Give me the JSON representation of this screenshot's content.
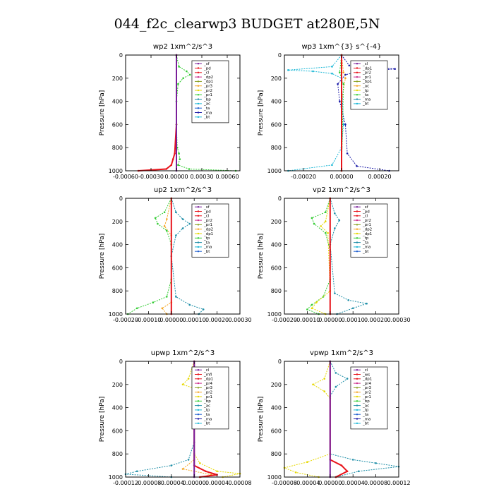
{
  "figure": {
    "title": "044_f2c_clearwp3  BUDGET at280E,5N"
  },
  "colors": {
    "purple": "#7a1f9a",
    "red": "#e8141b",
    "green": "#33cc33",
    "orange": "#f5a623",
    "yellow": "#e6d800",
    "blue": "#2060d0",
    "cyan": "#19b7d6",
    "teal": "#1f8fa8",
    "navy": "#1a1aa8",
    "magenta": "#cc2f8c",
    "olive": "#8aa020"
  },
  "chart_data": [
    {
      "type": "line",
      "title": "wp2   1xm^2/s^3",
      "ylabel": "Pressure [hPa]",
      "ylim": [
        1000,
        0
      ],
      "xlim": [
        -0.0006,
        0.00075
      ],
      "x_ticks": [
        -0.0006,
        -0.0003,
        0,
        0.0003,
        0.0006
      ],
      "x_tick_labels": [
        "-0.00060",
        "-0.00030",
        "0.00000",
        "0.00030",
        "0.00060"
      ],
      "y_ticks": [
        0,
        200,
        400,
        600,
        800,
        1000
      ],
      "legend": {
        "position": "right",
        "entries": [
          "_sf",
          "_pd",
          "_cl",
          "_dp2",
          "_dp1",
          "_pr3",
          "_pr2",
          "_pr1",
          "_bp",
          "_ac",
          "_ta",
          "_ma",
          "_bt"
        ]
      },
      "series": [
        {
          "color": "green",
          "points": [
            [
              0,
              0
            ],
            [
              3e-05,
              100
            ],
            [
              0.00012,
              140
            ],
            [
              0.00016,
              170
            ],
            [
              8e-05,
              200
            ],
            [
              2e-05,
              250
            ],
            [
              0,
              400
            ],
            [
              0,
              600
            ],
            [
              1e-05,
              800
            ],
            [
              3e-05,
              850
            ],
            [
              4e-05,
              900
            ],
            [
              2e-05,
              950
            ],
            [
              0.00015,
              985
            ],
            [
              0.0007,
              1000
            ]
          ]
        },
        {
          "color": "red",
          "points": [
            [
              0,
              0
            ],
            [
              0,
              600
            ],
            [
              -2e-05,
              850
            ],
            [
              -4e-05,
              900
            ],
            [
              -6e-05,
              950
            ],
            [
              -0.00012,
              985
            ],
            [
              -0.00045,
              1000
            ]
          ]
        },
        {
          "color": "purple",
          "points": [
            [
              0,
              0
            ],
            [
              0,
              1000
            ]
          ]
        }
      ]
    },
    {
      "type": "line",
      "title": "wp3   1xm^{3} s^{-4}",
      "ylabel": "Pressure [hPa]",
      "ylim": [
        1000,
        0
      ],
      "xlim": [
        -0.0003,
        0.0003
      ],
      "x_ticks": [
        -0.0002,
        0,
        0.0002
      ],
      "x_tick_labels": [
        "-0.00020",
        "0.00000",
        "0.00020"
      ],
      "y_ticks": [
        0,
        200,
        400,
        600,
        800,
        1000
      ],
      "legend": {
        "position": "right",
        "entries": [
          "_cl",
          "_dp1",
          "_pr2",
          "_pr1",
          "_bp1",
          "_ac",
          "_tp",
          "_ta",
          "_ma",
          "_bt"
        ]
      },
      "series": [
        {
          "color": "cyan",
          "points": [
            [
              0,
              0
            ],
            [
              -5e-05,
              100
            ],
            [
              -0.00028,
              130
            ],
            [
              -0.00015,
              140
            ],
            [
              -5e-05,
              160
            ],
            [
              0,
              200
            ],
            [
              1e-05,
              600
            ],
            [
              0,
              800
            ],
            [
              -5e-05,
              950
            ],
            [
              -0.00028,
              1000
            ]
          ]
        },
        {
          "color": "navy",
          "points": [
            [
              0,
              0
            ],
            [
              4e-05,
              90
            ],
            [
              0.00028,
              120
            ],
            [
              0.0001,
              140
            ],
            [
              2e-05,
              170
            ],
            [
              -2e-05,
              250
            ],
            [
              -1e-05,
              400
            ],
            [
              2e-05,
              600
            ],
            [
              3e-05,
              850
            ],
            [
              8e-05,
              960
            ],
            [
              0.00025,
              1000
            ]
          ]
        },
        {
          "color": "orange",
          "points": [
            [
              0,
              0
            ],
            [
              1e-05,
              150
            ],
            [
              2e-05,
              200
            ],
            [
              0,
              400
            ],
            [
              0,
              1000
            ]
          ]
        },
        {
          "color": "green",
          "points": [
            [
              0,
              0
            ],
            [
              -1e-05,
              150
            ],
            [
              1e-05,
              250
            ],
            [
              0,
              1000
            ]
          ]
        },
        {
          "color": "red",
          "points": [
            [
              0,
              0
            ],
            [
              0,
              1000
            ]
          ]
        }
      ]
    },
    {
      "type": "line",
      "title": "up2   1xm^2/s^3",
      "ylabel": "Pressure [hPa]",
      "ylim": [
        1000,
        0
      ],
      "xlim": [
        -0.0002,
        0.0003
      ],
      "x_ticks": [
        -0.0002,
        -0.0001,
        0,
        0.0001,
        0.0002,
        0.0003
      ],
      "x_tick_labels": [
        "-0.00020",
        "-0.00010",
        "0.00000",
        "0.00010",
        "0.00020",
        "0.00030"
      ],
      "y_ticks": [
        0,
        200,
        400,
        600,
        800,
        1000
      ],
      "legend": {
        "position": "right",
        "entries": [
          "_sf",
          "_pd",
          "_cl",
          "_pr2",
          "_pr1",
          "_dp2",
          "_dp1",
          "_tp",
          "_ta",
          "_ma",
          "_bt"
        ]
      },
      "series": [
        {
          "color": "green",
          "points": [
            [
              0,
              0
            ],
            [
              -3e-05,
              120
            ],
            [
              -7e-05,
              170
            ],
            [
              -6e-05,
              220
            ],
            [
              -2e-05,
              280
            ],
            [
              0,
              400
            ],
            [
              0,
              700
            ],
            [
              -2e-05,
              850
            ],
            [
              -8e-05,
              900
            ],
            [
              -0.00015,
              950
            ],
            [
              -0.00019,
              1000
            ]
          ]
        },
        {
          "color": "teal",
          "points": [
            [
              0,
              0
            ],
            [
              2e-05,
              120
            ],
            [
              5e-05,
              180
            ],
            [
              8e-05,
              220
            ],
            [
              5e-05,
              260
            ],
            [
              2e-05,
              320
            ],
            [
              0,
              500
            ],
            [
              2e-05,
              850
            ],
            [
              8e-05,
              920
            ],
            [
              0.00014,
              960
            ],
            [
              0.00012,
              1000
            ]
          ]
        },
        {
          "color": "orange",
          "points": [
            [
              0,
              0
            ],
            [
              -2e-05,
              180
            ],
            [
              -3e-05,
              240
            ],
            [
              0,
              320
            ],
            [
              0,
              900
            ],
            [
              -4e-05,
              950
            ],
            [
              -2e-05,
              1000
            ]
          ]
        },
        {
          "color": "red",
          "points": [
            [
              0,
              0
            ],
            [
              0,
              1000
            ]
          ]
        }
      ]
    },
    {
      "type": "line",
      "title": "vp2   1xm^2/s^3",
      "ylabel": "Pressure [hPa]",
      "ylim": [
        1000,
        0
      ],
      "xlim": [
        -0.0002,
        0.0003
      ],
      "x_ticks": [
        -0.0002,
        -0.0001,
        0,
        0.0001,
        0.0002,
        0.0003
      ],
      "x_tick_labels": [
        "-0.00020",
        "-0.00010",
        "0.00000",
        "0.00010",
        "0.00020",
        "0.00030"
      ],
      "y_ticks": [
        0,
        200,
        400,
        600,
        800,
        1000
      ],
      "legend": {
        "position": "right",
        "entries": [
          "_sf",
          "_pd",
          "_cl",
          "_pr2",
          "_pr1",
          "_dp2",
          "_dp1",
          "_tp",
          "_ta",
          "_ma",
          "_bt"
        ]
      },
      "series": [
        {
          "color": "green",
          "points": [
            [
              0,
              0
            ],
            [
              -2e-05,
              120
            ],
            [
              -8e-05,
              170
            ],
            [
              -7e-05,
              220
            ],
            [
              -2e-05,
              300
            ],
            [
              0,
              450
            ],
            [
              0,
              700
            ],
            [
              -3e-05,
              850
            ],
            [
              -8e-05,
              920
            ],
            [
              -0.0001,
              960
            ],
            [
              -5e-05,
              1000
            ]
          ]
        },
        {
          "color": "teal",
          "points": [
            [
              0,
              0
            ],
            [
              2e-05,
              130
            ],
            [
              4e-05,
              190
            ],
            [
              2e-05,
              260
            ],
            [
              0,
              400
            ],
            [
              2e-05,
              820
            ],
            [
              8e-05,
              880
            ],
            [
              0.00016,
              910
            ],
            [
              0.0001,
              950
            ],
            [
              3e-05,
              1000
            ]
          ]
        },
        {
          "color": "yellow",
          "points": [
            [
              0,
              0
            ],
            [
              -2e-05,
              200
            ],
            [
              -4e-05,
              240
            ],
            [
              -1e-05,
              300
            ],
            [
              0,
              800
            ],
            [
              -6e-05,
              900
            ],
            [
              -8e-05,
              950
            ],
            [
              -2e-05,
              1000
            ]
          ]
        },
        {
          "color": "red",
          "points": [
            [
              0,
              0
            ],
            [
              0,
              1000
            ]
          ]
        }
      ]
    },
    {
      "type": "line",
      "title": "upwp   1xm^2/s^3",
      "ylabel": "Pressure [hPa]",
      "ylim": [
        1000,
        0
      ],
      "xlim": [
        -0.00012,
        8e-05
      ],
      "x_ticks": [
        -0.00012,
        -8e-05,
        -4e-05,
        0,
        4e-05,
        8e-05
      ],
      "x_tick_labels": [
        "-0.00012",
        "-0.00008",
        "-0.00004",
        "0.00000",
        "0.00004",
        "0.00008"
      ],
      "y_ticks": [
        0,
        200,
        400,
        600,
        800,
        1000
      ],
      "legend": {
        "position": "right",
        "entries": [
          "_cl",
          "_mfl",
          "_dp1",
          "_pr4",
          "_pr3",
          "_pr2",
          "_pr1",
          "_bp",
          "_ac",
          "_tp",
          "_ta",
          "_ma",
          "_bt"
        ]
      },
      "series": [
        {
          "color": "teal",
          "points": [
            [
              0,
              0
            ],
            [
              0,
              700
            ],
            [
              -1e-05,
              850
            ],
            [
              -4e-05,
              900
            ],
            [
              -0.0001,
              950
            ],
            [
              -0.00012,
              975
            ],
            [
              -4e-05,
              1000
            ]
          ]
        },
        {
          "color": "yellow",
          "points": [
            [
              0,
              0
            ],
            [
              -1e-05,
              150
            ],
            [
              -2e-05,
              200
            ],
            [
              1e-05,
              250
            ],
            [
              0,
              300
            ],
            [
              0,
              800
            ],
            [
              1e-05,
              880
            ],
            [
              4e-05,
              950
            ],
            [
              8e-05,
              970
            ],
            [
              5e-05,
              1000
            ]
          ]
        },
        {
          "color": "orange",
          "points": [
            [
              0,
              0
            ],
            [
              0,
              850
            ],
            [
              -2e-05,
              930
            ],
            [
              3e-05,
              980
            ],
            [
              1e-05,
              1000
            ]
          ]
        },
        {
          "color": "red",
          "points": [
            [
              0,
              0
            ],
            [
              0,
              900
            ],
            [
              2e-05,
              950
            ],
            [
              4e-05,
              980
            ],
            [
              1e-05,
              1000
            ]
          ]
        },
        {
          "color": "purple",
          "points": [
            [
              0,
              0
            ],
            [
              0,
              1000
            ]
          ]
        }
      ]
    },
    {
      "type": "line",
      "title": "vpwp   1xm^2/s^3",
      "ylabel": "Pressure [hPa]",
      "ylim": [
        1000,
        0
      ],
      "xlim": [
        -8e-05,
        0.00012
      ],
      "x_ticks": [
        -8e-05,
        -4e-05,
        0,
        4e-05,
        8e-05,
        0.00012
      ],
      "x_tick_labels": [
        "-0.00008",
        "-0.00004",
        "0.00000",
        "0.00004",
        "0.00008",
        "0.00012"
      ],
      "y_ticks": [
        0,
        200,
        400,
        600,
        800,
        1000
      ],
      "legend": {
        "position": "right",
        "entries": [
          "_cl",
          "_ws",
          "_dp1",
          "_pr4",
          "_pr3",
          "_pr2",
          "_pr1",
          "_bp",
          "_ac",
          "_tp",
          "_ta",
          "_ma",
          "_bt"
        ]
      },
      "series": [
        {
          "color": "teal",
          "points": [
            [
              0,
              0
            ],
            [
              1e-05,
              100
            ],
            [
              3e-05,
              150
            ],
            [
              1e-05,
              220
            ],
            [
              0,
              300
            ],
            [
              0,
              800
            ],
            [
              4e-05,
              850
            ],
            [
              8e-05,
              880
            ],
            [
              0.00012,
              910
            ],
            [
              5e-05,
              950
            ],
            [
              1e-05,
              1000
            ]
          ]
        },
        {
          "color": "yellow",
          "points": [
            [
              0,
              0
            ],
            [
              -1e-05,
              150
            ],
            [
              -3e-05,
              200
            ],
            [
              -1e-05,
              260
            ],
            [
              0,
              320
            ],
            [
              0,
              800
            ],
            [
              -4e-05,
              870
            ],
            [
              -8e-05,
              920
            ],
            [
              -6e-05,
              960
            ],
            [
              -2e-05,
              1000
            ]
          ]
        },
        {
          "color": "red",
          "points": [
            [
              0,
              0
            ],
            [
              0,
              850
            ],
            [
              2e-05,
              900
            ],
            [
              3e-05,
              950
            ],
            [
              1e-05,
              1000
            ]
          ]
        },
        {
          "color": "purple",
          "points": [
            [
              0,
              0
            ],
            [
              0,
              1000
            ]
          ]
        }
      ]
    }
  ]
}
